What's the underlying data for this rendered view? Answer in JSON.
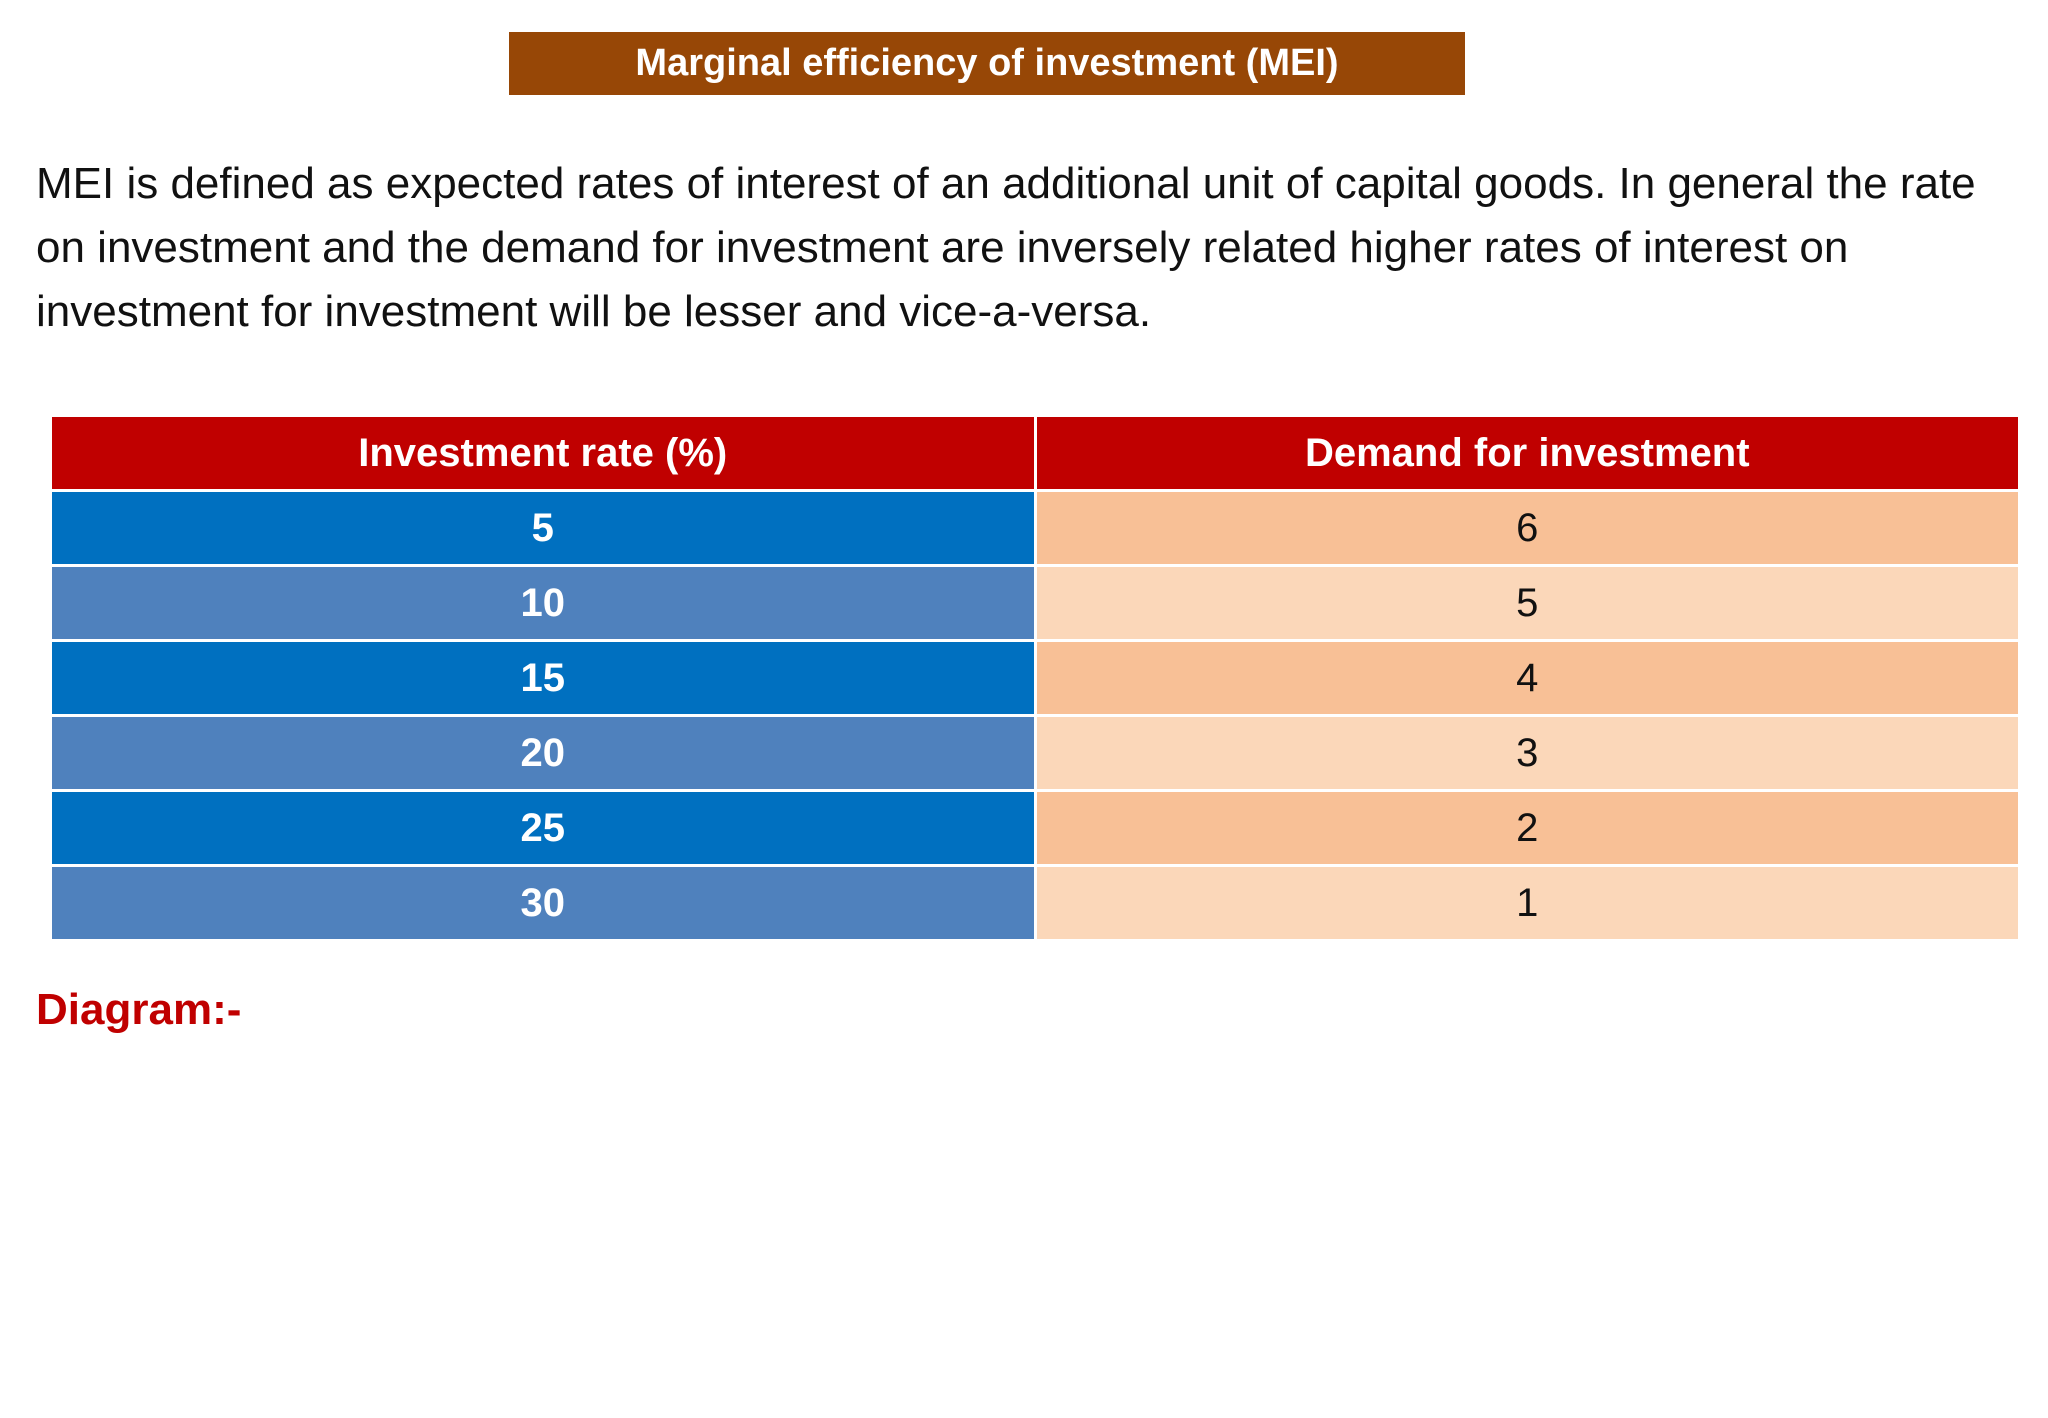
{
  "header": {
    "title": "Marginal efficiency of investment (MEI)"
  },
  "paragraph": "MEI is defined as expected rates of interest of an additional unit of capital goods. In general the rate on investment and the demand for investment are inversely related higher rates of interest on investment for investment will be lesser and vice-a-versa.",
  "table": {
    "columns": [
      "Investment rate (%)",
      "Demand for investment"
    ],
    "rows": [
      [
        5,
        6
      ],
      [
        10,
        5
      ],
      [
        15,
        4
      ],
      [
        20,
        3
      ],
      [
        25,
        2
      ],
      [
        30,
        1
      ]
    ]
  },
  "diagram_label": "Diagram:-"
}
